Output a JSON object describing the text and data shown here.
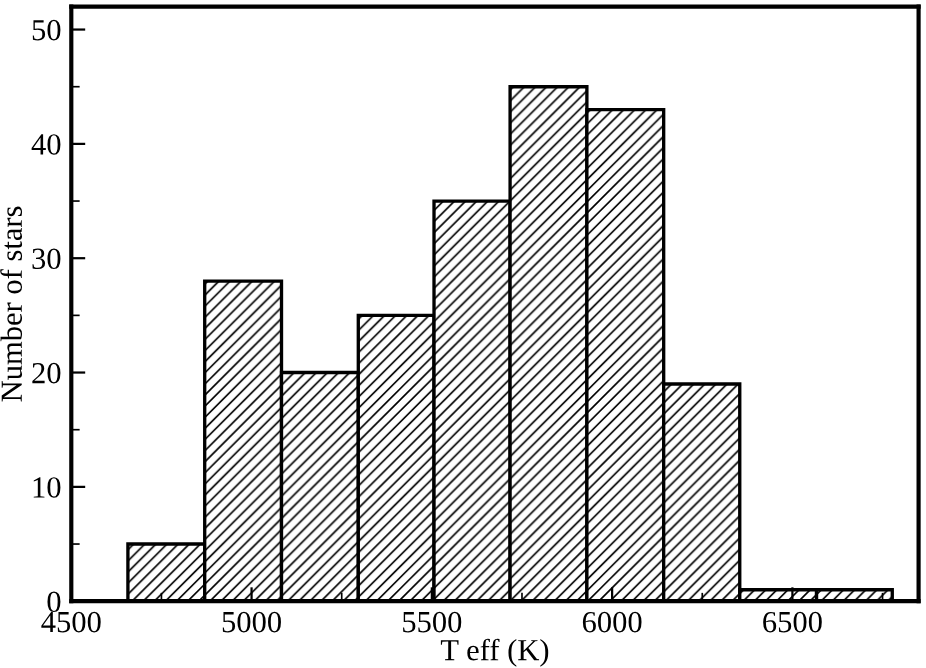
{
  "chart_data": {
    "type": "histogram",
    "xlabel": "T eff (K)",
    "ylabel": "Number of stars",
    "bins": [
      4657,
      4870,
      5083,
      5296,
      5506,
      5717,
      5930,
      6143,
      6354,
      6567,
      6777
    ],
    "values": [
      5,
      28,
      20,
      25,
      35,
      45,
      43,
      19,
      1,
      1
    ],
    "color": "#000000",
    "xlim": [
      4500,
      6850
    ],
    "xticks": [
      4500,
      5000,
      5500,
      6000,
      6500
    ],
    "ylim": [
      0,
      52
    ],
    "yticks": [
      0,
      10,
      20,
      30,
      40,
      50
    ],
    "grid": false,
    "legend": false
  }
}
